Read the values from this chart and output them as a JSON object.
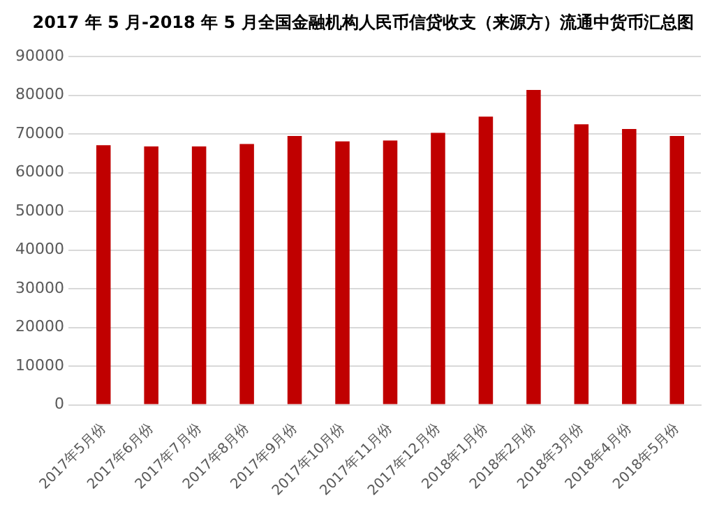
{
  "chart_data": {
    "type": "bar",
    "title": "2017 年 5 月-2018 年 5 月全国金融机构人民币信贷收支（来源方）流通中货币汇总图",
    "categories": [
      "2017年5月份",
      "2017年6月份",
      "2017年7月份",
      "2017年8月份",
      "2017年9月份",
      "2017年10月份",
      "2017年11月份",
      "2017年12月份",
      "2018年1月份",
      "2018年2月份",
      "2018年3月份",
      "2018年4月份",
      "2018年5月份"
    ],
    "values": [
      67100,
      66800,
      66800,
      67400,
      69500,
      68100,
      68300,
      70300,
      74500,
      81400,
      72500,
      71300,
      69500
    ],
    "color": "#c00000",
    "ylim": [
      0,
      90000
    ],
    "yticks": [
      0,
      10000,
      20000,
      30000,
      40000,
      50000,
      60000,
      70000,
      80000,
      90000
    ],
    "grid": "y"
  }
}
